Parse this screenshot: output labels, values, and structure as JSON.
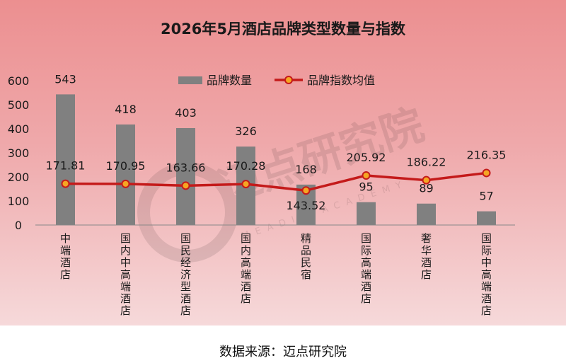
{
  "chart_data": {
    "type": "bar",
    "title": "2026年5月酒店品牌类型数量与指数",
    "categories": [
      "中端酒店",
      "国内中高端酒店",
      "国民经济型酒店",
      "国内高端酒店",
      "精品民宿",
      "国际高端酒店",
      "奢华酒店",
      "国际中高端酒店"
    ],
    "series": [
      {
        "name": "品牌数量",
        "kind": "bar",
        "color": "#808080",
        "values": [
          543,
          418,
          403,
          326,
          168,
          95,
          89,
          57
        ]
      },
      {
        "name": "品牌指数均值",
        "kind": "line",
        "color": "#c41a1a",
        "marker_color": "#f5a623",
        "values": [
          171.81,
          170.95,
          163.66,
          170.28,
          143.52,
          205.92,
          186.22,
          216.35
        ]
      }
    ],
    "y_ticks": [
      "0",
      "100",
      "200",
      "300",
      "400",
      "500",
      "600"
    ],
    "ylim": [
      0,
      600
    ],
    "legend_position": "top"
  },
  "watermark": {
    "cn": "迈点研究院",
    "en": "MEADIN ACADEMY"
  },
  "source_text": "数据来源：迈点研究院"
}
